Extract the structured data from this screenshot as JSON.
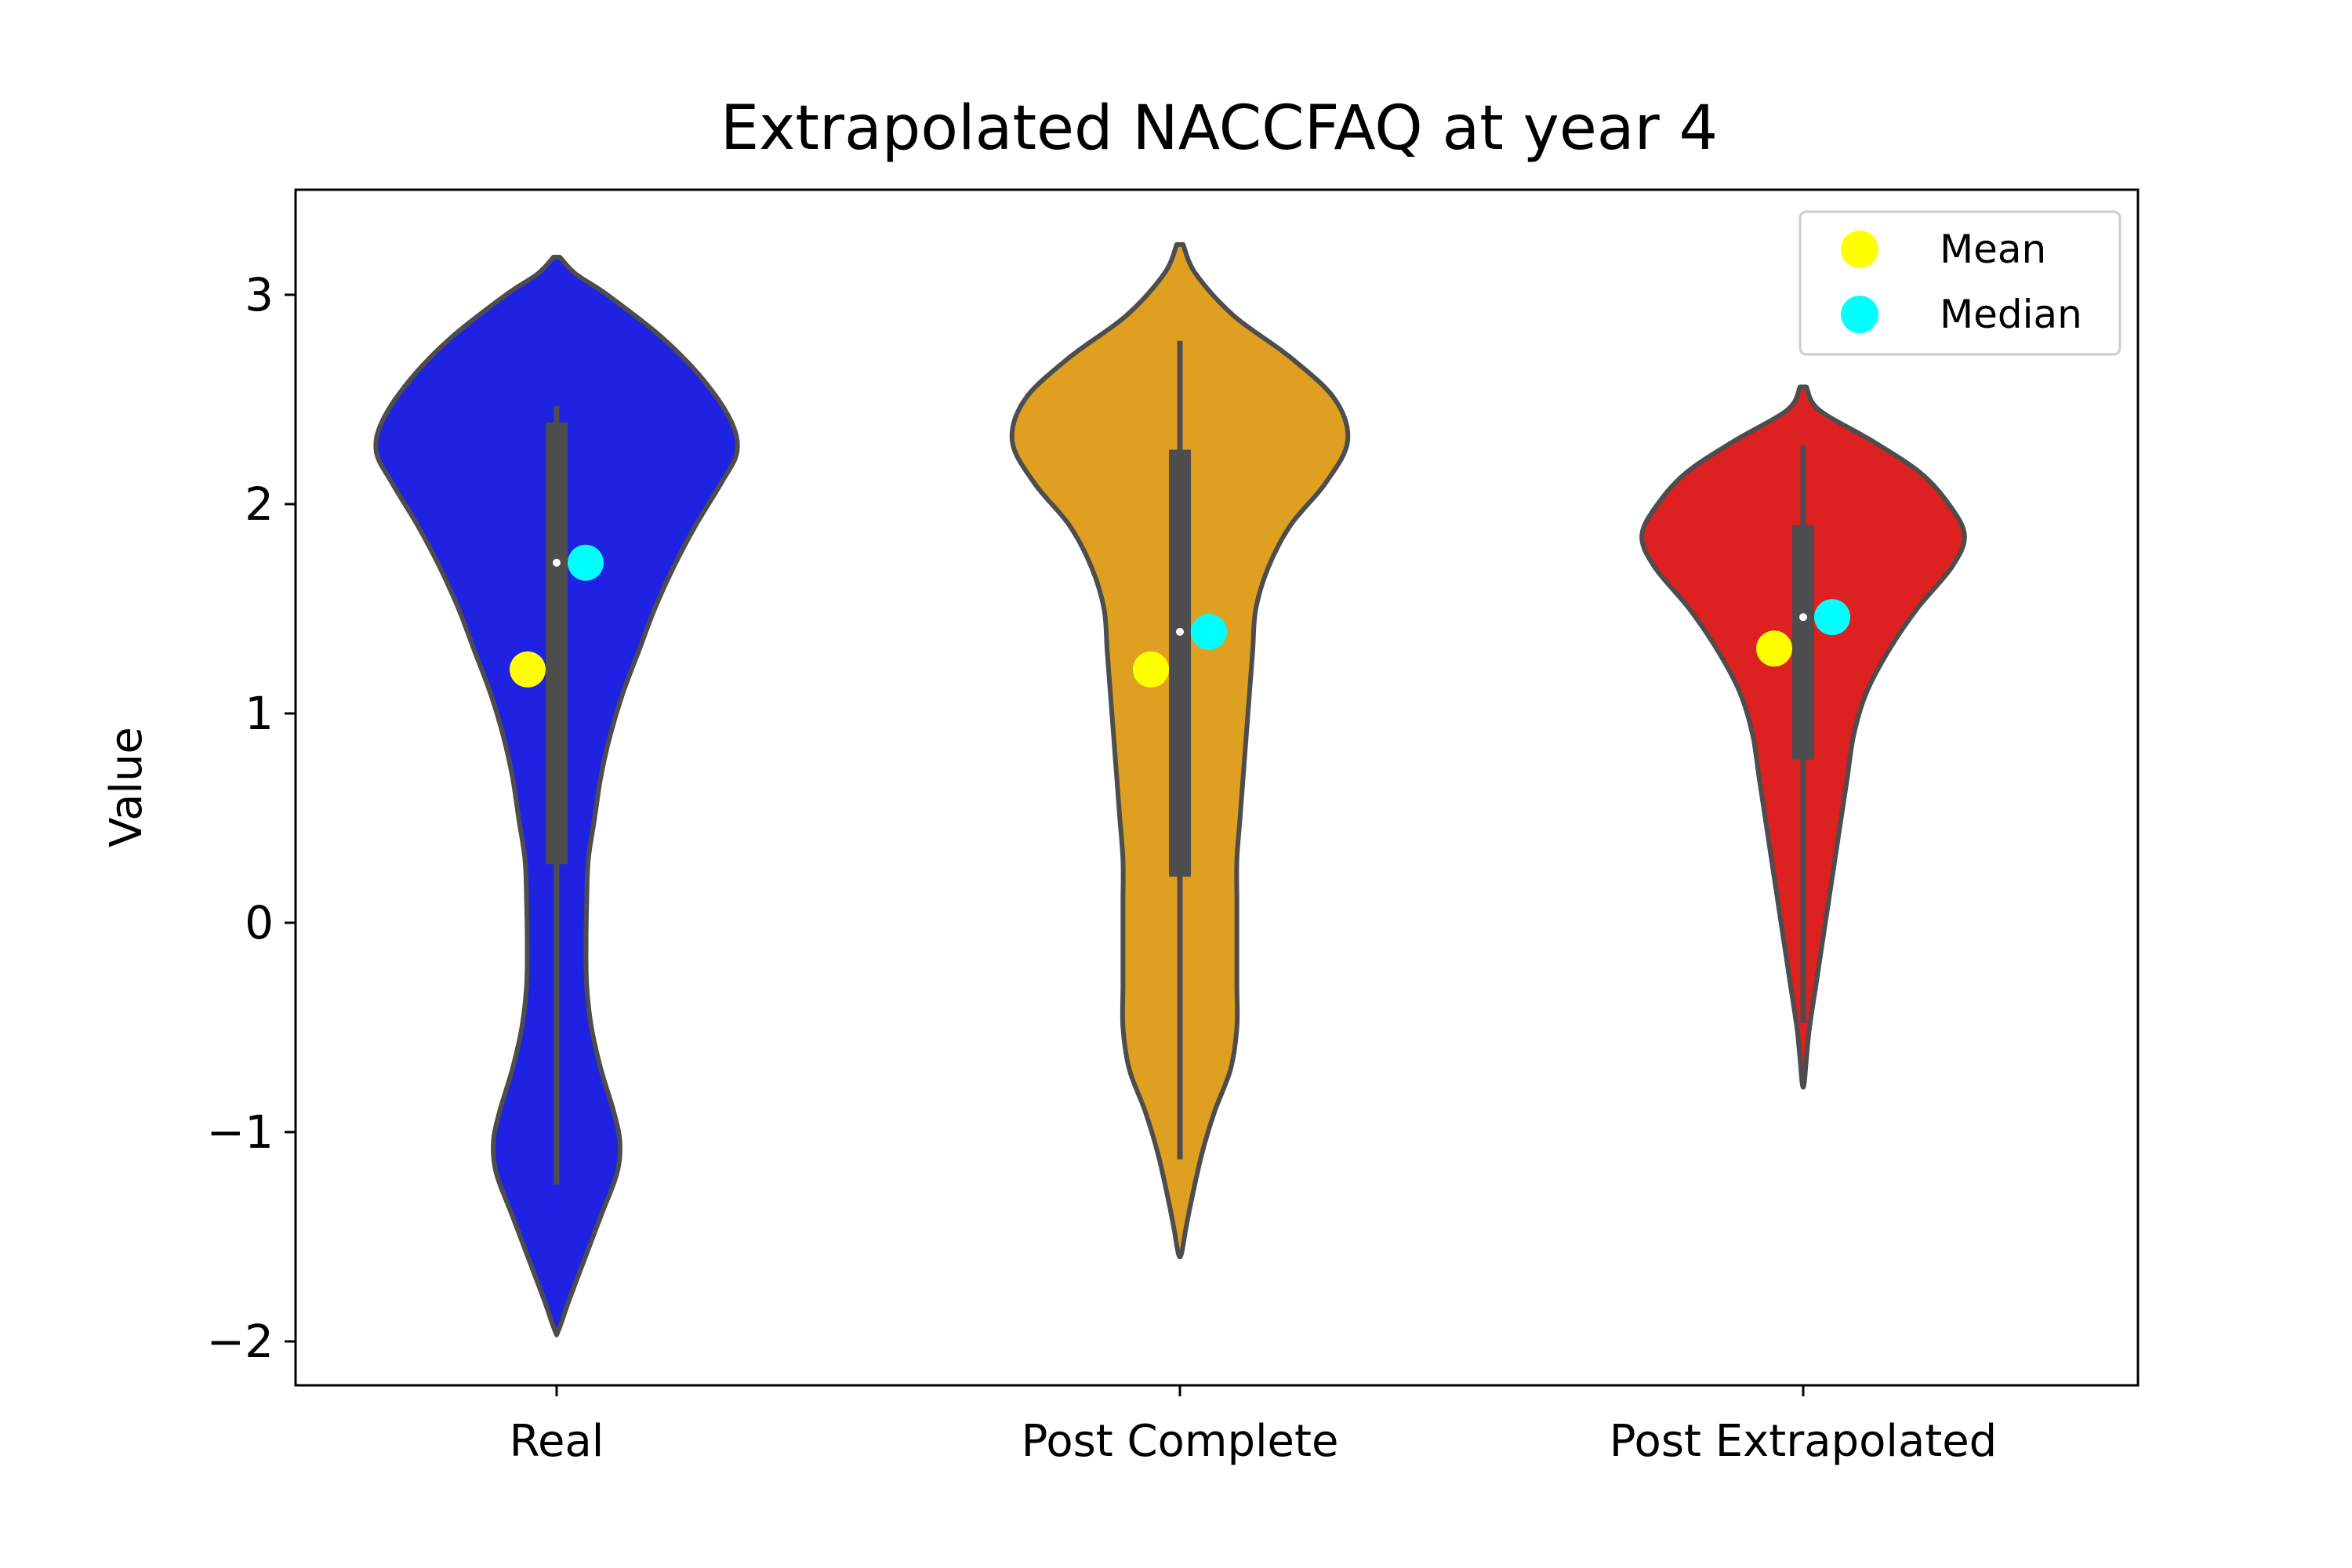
{
  "chart_data": {
    "type": "violin",
    "title": "Extrapolated NACCFAQ at year 4",
    "xlabel": "",
    "ylabel": "Value",
    "ylim": [
      -2.2,
      3.5
    ],
    "yticks": [
      -2,
      -1,
      0,
      1,
      2,
      3
    ],
    "ytick_labels": [
      "−2",
      "−1",
      "0",
      "1",
      "2",
      "3"
    ],
    "grid": false,
    "legend": {
      "placement": "top-right",
      "entries": [
        {
          "label": "Mean",
          "color": "#ffff00"
        },
        {
          "label": "Median",
          "color": "#00ffff"
        }
      ]
    },
    "categories": [
      "Real",
      "Post Complete",
      "Post Extrapolated"
    ],
    "series": [
      {
        "category": "Real",
        "color": "#1f22e0",
        "min": -1.25,
        "q1": 0.28,
        "median": 1.72,
        "q3": 2.39,
        "max": 2.47,
        "mean": 1.21,
        "violin_min": -1.95,
        "violin_max": 3.18,
        "density": [
          [
            3.18,
            0.01
          ],
          [
            3.1,
            0.06
          ],
          [
            3.0,
            0.16
          ],
          [
            2.8,
            0.33
          ],
          [
            2.6,
            0.46
          ],
          [
            2.4,
            0.55
          ],
          [
            2.25,
            0.57
          ],
          [
            2.1,
            0.52
          ],
          [
            1.9,
            0.44
          ],
          [
            1.7,
            0.37
          ],
          [
            1.5,
            0.31
          ],
          [
            1.3,
            0.26
          ],
          [
            1.1,
            0.21
          ],
          [
            0.9,
            0.17
          ],
          [
            0.7,
            0.14
          ],
          [
            0.5,
            0.12
          ],
          [
            0.3,
            0.1
          ],
          [
            0.1,
            0.095
          ],
          [
            -0.1,
            0.093
          ],
          [
            -0.3,
            0.095
          ],
          [
            -0.5,
            0.11
          ],
          [
            -0.7,
            0.14
          ],
          [
            -0.9,
            0.18
          ],
          [
            -1.05,
            0.2
          ],
          [
            -1.2,
            0.19
          ],
          [
            -1.4,
            0.14
          ],
          [
            -1.6,
            0.09
          ],
          [
            -1.8,
            0.04
          ],
          [
            -1.95,
            0.005
          ]
        ]
      },
      {
        "category": "Post Complete",
        "color": "#dfa021",
        "min": -1.13,
        "q1": 0.22,
        "median": 1.39,
        "q3": 2.26,
        "max": 2.78,
        "mean": 1.21,
        "violin_min": -1.58,
        "violin_max": 3.24,
        "density": [
          [
            3.24,
            0.01
          ],
          [
            3.1,
            0.05
          ],
          [
            2.9,
            0.17
          ],
          [
            2.7,
            0.35
          ],
          [
            2.5,
            0.49
          ],
          [
            2.3,
            0.53
          ],
          [
            2.1,
            0.46
          ],
          [
            1.9,
            0.35
          ],
          [
            1.7,
            0.28
          ],
          [
            1.5,
            0.24
          ],
          [
            1.3,
            0.23
          ],
          [
            1.1,
            0.22
          ],
          [
            0.9,
            0.21
          ],
          [
            0.7,
            0.2
          ],
          [
            0.5,
            0.19
          ],
          [
            0.3,
            0.18
          ],
          [
            0.1,
            0.18
          ],
          [
            -0.1,
            0.18
          ],
          [
            -0.3,
            0.18
          ],
          [
            -0.5,
            0.18
          ],
          [
            -0.7,
            0.16
          ],
          [
            -0.9,
            0.11
          ],
          [
            -1.1,
            0.07
          ],
          [
            -1.3,
            0.04
          ],
          [
            -1.45,
            0.02
          ],
          [
            -1.58,
            0.005
          ]
        ]
      },
      {
        "category": "Post Extrapolated",
        "color": "#dd2020",
        "min": -0.48,
        "q1": 0.78,
        "median": 1.46,
        "q3": 1.9,
        "max": 2.28,
        "mean": 1.31,
        "violin_min": -0.77,
        "violin_max": 2.56,
        "density": [
          [
            2.56,
            0.01
          ],
          [
            2.45,
            0.05
          ],
          [
            2.3,
            0.22
          ],
          [
            2.15,
            0.37
          ],
          [
            2.0,
            0.46
          ],
          [
            1.85,
            0.51
          ],
          [
            1.7,
            0.47
          ],
          [
            1.5,
            0.36
          ],
          [
            1.3,
            0.27
          ],
          [
            1.1,
            0.2
          ],
          [
            0.9,
            0.16
          ],
          [
            0.7,
            0.14
          ],
          [
            0.5,
            0.12
          ],
          [
            0.3,
            0.1
          ],
          [
            0.1,
            0.08
          ],
          [
            -0.1,
            0.06
          ],
          [
            -0.3,
            0.04
          ],
          [
            -0.5,
            0.02
          ],
          [
            -0.65,
            0.01
          ],
          [
            -0.77,
            0.003
          ]
        ]
      }
    ]
  }
}
